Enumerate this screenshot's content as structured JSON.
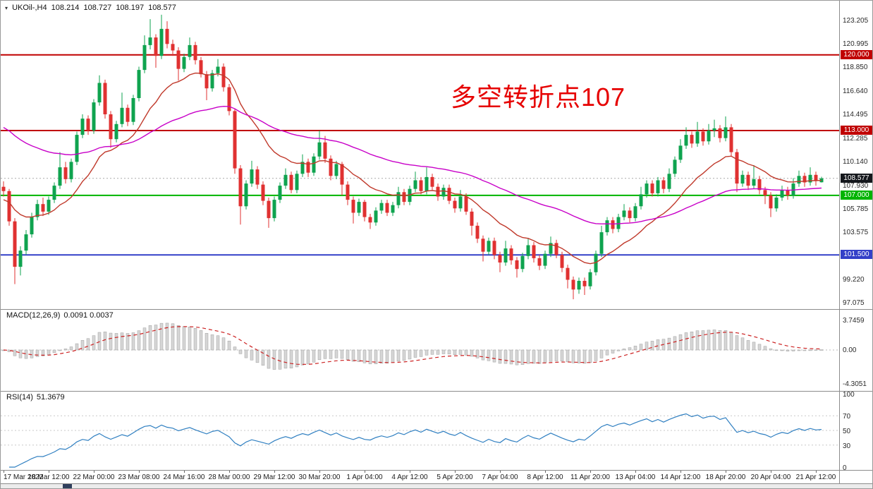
{
  "header": {
    "symbol": "UKOil-,H4",
    "open": "108.214",
    "high": "108.727",
    "low": "108.197",
    "close": "108.577"
  },
  "annotation": {
    "text": "多空转折点107",
    "color": "#e60000"
  },
  "colors": {
    "up": "#0fa34f",
    "down": "#e03131",
    "ma_fast": "#c0392b",
    "ma_slow": "#c800c8",
    "bid_line": "#aaaaaa",
    "bid_badge": "#15181d",
    "macd_hist": "#d6d6d6",
    "macd_hist_border": "#a0a0a0",
    "macd_signal": "#cc2222",
    "rsi_line": "#2f7fc1",
    "level_line": "#c8c8c8"
  },
  "chart_data": {
    "type": "candlestick",
    "symbol": "UKOil-",
    "timeframe": "H4",
    "current": {
      "open": 108.214,
      "high": 108.727,
      "low": 108.197,
      "close": 108.577
    },
    "price_axis": {
      "ticks": [
        123.205,
        120.995,
        118.85,
        116.64,
        114.495,
        112.285,
        110.14,
        107.93,
        105.785,
        103.575,
        99.22,
        97.075
      ],
      "min": 96.5,
      "max": 125.0
    },
    "hlines": [
      {
        "price": 120.0,
        "label": "120.000",
        "color": "#c00000"
      },
      {
        "price": 113.0,
        "label": "113.000",
        "color": "#c00000"
      },
      {
        "price": 107.0,
        "label": "107.000",
        "color": "#00b400"
      },
      {
        "price": 101.5,
        "label": "101.500",
        "color": "#3340c8"
      }
    ],
    "bid": {
      "price": 108.577,
      "label": "108.577"
    },
    "ma": [
      {
        "name": "ma-fast-line",
        "period": 16,
        "seed": 106.5,
        "color": "#c0392b"
      },
      {
        "name": "ma-slow-line",
        "period": 55,
        "seed": 113.5,
        "color": "#c800c8"
      }
    ],
    "candles": [
      [
        107.8,
        108.3,
        106.9,
        107.4
      ],
      [
        107.4,
        107.6,
        104.2,
        104.6
      ],
      [
        104.6,
        104.9,
        98.8,
        100.4
      ],
      [
        100.4,
        102.3,
        99.6,
        101.9
      ],
      [
        101.9,
        103.8,
        101.5,
        103.4
      ],
      [
        103.4,
        105.4,
        103.1,
        105.0
      ],
      [
        105.0,
        106.6,
        104.7,
        106.2
      ],
      [
        106.2,
        106.8,
        105.1,
        105.5
      ],
      [
        105.5,
        106.9,
        105.2,
        106.6
      ],
      [
        106.6,
        108.2,
        106.3,
        107.9
      ],
      [
        107.9,
        111.0,
        107.6,
        109.6
      ],
      [
        109.6,
        110.1,
        108.1,
        108.5
      ],
      [
        108.5,
        110.4,
        108.2,
        110.1
      ],
      [
        110.1,
        112.9,
        109.8,
        112.6
      ],
      [
        112.6,
        114.5,
        112.3,
        114.1
      ],
      [
        114.1,
        114.4,
        112.6,
        113.0
      ],
      [
        113.0,
        115.9,
        112.7,
        115.6
      ],
      [
        115.6,
        118.1,
        115.3,
        117.4
      ],
      [
        117.4,
        117.7,
        114.1,
        114.5
      ],
      [
        114.5,
        114.8,
        111.4,
        112.2
      ],
      [
        112.2,
        113.9,
        111.9,
        113.6
      ],
      [
        113.6,
        116.5,
        113.3,
        115.1
      ],
      [
        115.1,
        115.4,
        113.4,
        113.8
      ],
      [
        113.8,
        116.3,
        113.5,
        116.0
      ],
      [
        116.0,
        118.9,
        115.7,
        118.6
      ],
      [
        118.6,
        121.8,
        118.3,
        120.9
      ],
      [
        120.9,
        123.3,
        120.5,
        121.6
      ],
      [
        121.6,
        121.9,
        118.8,
        119.9
      ],
      [
        119.9,
        123.7,
        119.6,
        122.4
      ],
      [
        122.4,
        123.1,
        120.6,
        121.0
      ],
      [
        121.0,
        121.4,
        119.9,
        120.4
      ],
      [
        120.4,
        120.7,
        117.6,
        118.7
      ],
      [
        118.7,
        120.1,
        118.4,
        119.8
      ],
      [
        119.8,
        121.6,
        119.5,
        120.9
      ],
      [
        120.9,
        121.2,
        119.1,
        119.5
      ],
      [
        119.5,
        119.8,
        117.9,
        118.2
      ],
      [
        118.2,
        118.5,
        115.8,
        116.9
      ],
      [
        116.9,
        118.6,
        116.6,
        118.3
      ],
      [
        118.3,
        119.6,
        118.0,
        118.9
      ],
      [
        118.9,
        119.2,
        116.6,
        117.0
      ],
      [
        117.0,
        117.3,
        114.4,
        114.8
      ],
      [
        114.8,
        115.0,
        109.0,
        109.5
      ],
      [
        109.5,
        109.8,
        104.3,
        106.0
      ],
      [
        106.0,
        108.4,
        105.7,
        108.1
      ],
      [
        108.1,
        110.2,
        107.8,
        109.4
      ],
      [
        109.4,
        109.7,
        107.6,
        108.0
      ],
      [
        108.0,
        108.3,
        106.1,
        106.5
      ],
      [
        106.5,
        106.8,
        104.0,
        104.9
      ],
      [
        104.9,
        106.9,
        104.6,
        106.6
      ],
      [
        106.6,
        108.2,
        106.3,
        107.9
      ],
      [
        107.9,
        109.5,
        107.6,
        108.9
      ],
      [
        108.9,
        109.2,
        107.2,
        107.5
      ],
      [
        107.5,
        109.3,
        107.2,
        109.0
      ],
      [
        109.0,
        110.8,
        108.7,
        110.1
      ],
      [
        110.1,
        110.4,
        108.7,
        109.1
      ],
      [
        109.1,
        110.9,
        108.8,
        110.6
      ],
      [
        110.6,
        113.0,
        110.3,
        111.9
      ],
      [
        111.9,
        112.5,
        110.0,
        110.4
      ],
      [
        110.4,
        110.7,
        108.4,
        108.8
      ],
      [
        108.8,
        110.2,
        108.5,
        109.9
      ],
      [
        109.9,
        110.1,
        107.0,
        108.0
      ],
      [
        108.0,
        108.3,
        106.1,
        106.6
      ],
      [
        106.6,
        106.9,
        104.4,
        105.4
      ],
      [
        105.4,
        106.7,
        105.1,
        106.4
      ],
      [
        106.4,
        106.6,
        104.6,
        105.0
      ],
      [
        105.0,
        105.3,
        103.9,
        104.5
      ],
      [
        104.5,
        105.9,
        104.2,
        105.6
      ],
      [
        105.6,
        106.6,
        105.3,
        106.3
      ],
      [
        106.3,
        106.6,
        105.1,
        105.4
      ],
      [
        105.4,
        106.4,
        105.1,
        106.1
      ],
      [
        106.1,
        107.8,
        105.8,
        107.3
      ],
      [
        107.3,
        107.6,
        106.1,
        106.4
      ],
      [
        106.4,
        107.9,
        106.1,
        107.6
      ],
      [
        107.6,
        109.2,
        107.3,
        108.4
      ],
      [
        108.4,
        108.7,
        107.1,
        107.4
      ],
      [
        107.4,
        109.6,
        107.1,
        108.7
      ],
      [
        108.7,
        109.0,
        107.5,
        107.8
      ],
      [
        107.8,
        108.1,
        106.5,
        106.9
      ],
      [
        106.9,
        108.0,
        106.6,
        107.7
      ],
      [
        107.7,
        108.0,
        106.2,
        106.5
      ],
      [
        106.5,
        106.8,
        105.4,
        105.8
      ],
      [
        105.8,
        107.5,
        105.5,
        106.9
      ],
      [
        106.9,
        107.2,
        105.2,
        105.5
      ],
      [
        105.5,
        105.8,
        103.3,
        104.2
      ],
      [
        104.2,
        104.5,
        102.6,
        103.0
      ],
      [
        103.0,
        103.3,
        100.9,
        101.8
      ],
      [
        101.8,
        103.1,
        101.5,
        102.8
      ],
      [
        102.8,
        103.1,
        101.1,
        101.5
      ],
      [
        101.5,
        101.8,
        99.9,
        100.8
      ],
      [
        100.8,
        102.8,
        100.5,
        102.1
      ],
      [
        102.1,
        102.4,
        100.6,
        101.0
      ],
      [
        101.0,
        101.3,
        99.4,
        100.2
      ],
      [
        100.2,
        101.7,
        99.9,
        101.4
      ],
      [
        101.4,
        103.0,
        101.1,
        102.4
      ],
      [
        102.4,
        102.7,
        100.8,
        101.2
      ],
      [
        101.2,
        101.5,
        100.1,
        100.5
      ],
      [
        100.5,
        101.9,
        100.2,
        101.6
      ],
      [
        101.6,
        103.2,
        101.3,
        102.6
      ],
      [
        102.6,
        102.9,
        101.2,
        101.5
      ],
      [
        101.5,
        101.8,
        99.9,
        100.3
      ],
      [
        100.3,
        100.6,
        98.4,
        99.2
      ],
      [
        99.2,
        99.5,
        97.4,
        98.3
      ],
      [
        98.3,
        99.4,
        97.9,
        99.1
      ],
      [
        99.1,
        99.4,
        97.8,
        98.6
      ],
      [
        98.6,
        100.2,
        98.3,
        99.9
      ],
      [
        99.9,
        101.9,
        99.6,
        101.6
      ],
      [
        101.6,
        104.2,
        101.3,
        103.6
      ],
      [
        103.6,
        105.0,
        103.3,
        104.7
      ],
      [
        104.7,
        105.0,
        103.5,
        103.9
      ],
      [
        103.9,
        105.3,
        103.6,
        105.0
      ],
      [
        105.0,
        106.2,
        104.7,
        105.6
      ],
      [
        105.6,
        105.9,
        104.5,
        104.9
      ],
      [
        104.9,
        106.3,
        104.6,
        106.0
      ],
      [
        106.0,
        107.8,
        105.7,
        107.1
      ],
      [
        107.1,
        108.4,
        106.8,
        108.1
      ],
      [
        108.1,
        108.4,
        106.9,
        107.2
      ],
      [
        107.2,
        108.7,
        106.9,
        108.4
      ],
      [
        108.4,
        108.7,
        107.2,
        107.6
      ],
      [
        107.6,
        109.5,
        107.3,
        109.0
      ],
      [
        109.0,
        110.6,
        108.7,
        110.3
      ],
      [
        110.3,
        112.2,
        110.0,
        111.6
      ],
      [
        111.6,
        113.3,
        111.3,
        112.6
      ],
      [
        112.6,
        112.9,
        111.4,
        111.8
      ],
      [
        111.8,
        113.8,
        111.5,
        112.9
      ],
      [
        112.9,
        113.2,
        111.6,
        112.0
      ],
      [
        112.0,
        113.6,
        111.7,
        113.0
      ],
      [
        113.0,
        114.0,
        112.4,
        113.2
      ],
      [
        113.2,
        113.5,
        111.9,
        112.3
      ],
      [
        112.3,
        114.3,
        112.0,
        113.3
      ],
      [
        113.3,
        113.6,
        110.6,
        111.0
      ],
      [
        111.0,
        111.3,
        107.3,
        108.1
      ],
      [
        108.1,
        109.3,
        107.8,
        108.9
      ],
      [
        108.9,
        109.2,
        107.5,
        107.9
      ],
      [
        107.9,
        109.8,
        107.6,
        108.5
      ],
      [
        108.5,
        108.8,
        107.1,
        107.5
      ],
      [
        107.5,
        107.8,
        106.2,
        107.0
      ],
      [
        107.0,
        107.3,
        105.0,
        105.8
      ],
      [
        105.8,
        107.1,
        105.5,
        106.8
      ],
      [
        106.8,
        107.9,
        106.5,
        107.5
      ],
      [
        107.5,
        107.8,
        106.6,
        107.0
      ],
      [
        107.0,
        108.6,
        106.7,
        108.1
      ],
      [
        108.1,
        109.3,
        107.8,
        108.8
      ],
      [
        108.8,
        109.1,
        107.8,
        108.2
      ],
      [
        108.2,
        109.6,
        107.9,
        108.9
      ],
      [
        108.9,
        109.2,
        107.9,
        108.4
      ],
      [
        108.214,
        108.727,
        108.197,
        108.577
      ]
    ],
    "time_labels": [
      {
        "text": "17 Mar 2022",
        "i": 0
      },
      {
        "text": "18 Mar 12:00",
        "i": 8
      },
      {
        "text": "22 Mar 00:00",
        "i": 16
      },
      {
        "text": "23 Mar 08:00",
        "i": 24
      },
      {
        "text": "24 Mar 16:00",
        "i": 32
      },
      {
        "text": "28 Mar 00:00",
        "i": 40
      },
      {
        "text": "29 Mar 12:00",
        "i": 48
      },
      {
        "text": "30 Mar 20:00",
        "i": 56
      },
      {
        "text": "1 Apr 04:00",
        "i": 64
      },
      {
        "text": "4 Apr 12:00",
        "i": 72
      },
      {
        "text": "5 Apr 20:00",
        "i": 80
      },
      {
        "text": "7 Apr 04:00",
        "i": 88
      },
      {
        "text": "8 Apr 12:00",
        "i": 96
      },
      {
        "text": "11 Apr 20:00",
        "i": 104
      },
      {
        "text": "13 Apr 04:00",
        "i": 112
      },
      {
        "text": "14 Apr 12:00",
        "i": 120
      },
      {
        "text": "18 Apr 20:00",
        "i": 128
      },
      {
        "text": "20 Apr 04:00",
        "i": 136
      },
      {
        "text": "21 Apr 12:00",
        "i": 144
      }
    ],
    "macd": {
      "label": "MACD(12,26,9)",
      "values_text": "0.0091 0.0037",
      "fast": 12,
      "slow": 26,
      "signal": 9,
      "axis_labels": [
        {
          "text": "3.7459",
          "v": 3.7459
        },
        {
          "text": "0.00",
          "v": 0
        },
        {
          "text": "-4.3051",
          "v": -4.3051
        }
      ]
    },
    "rsi": {
      "label": "RSI(14)",
      "value_text": "51.3679",
      "period": 14,
      "levels": [
        70,
        50,
        30
      ],
      "axis_labels": [
        {
          "text": "100",
          "v": 100
        },
        {
          "text": "70",
          "v": 70
        },
        {
          "text": "50",
          "v": 50
        },
        {
          "text": "30",
          "v": 30
        },
        {
          "text": "0",
          "v": 0
        }
      ]
    }
  }
}
